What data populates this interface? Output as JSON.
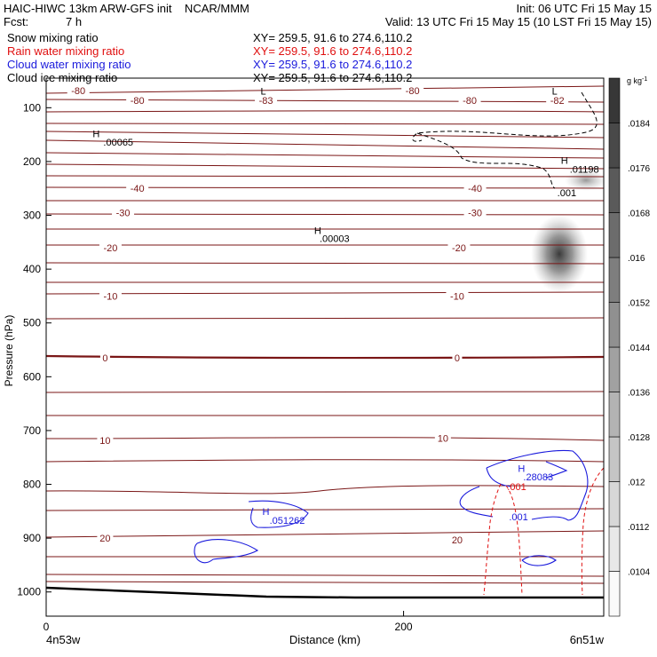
{
  "header": {
    "model_line": "HAIC-HIWC 13km ARW-GFS init    NCAR/MMM",
    "init_line": "Init: 06 UTC Fri 15 May 15",
    "fcst_label": "Fcst:",
    "fcst_value": "7 h",
    "valid_line": "Valid: 13 UTC Fri 15 May 15 (10 LST Fri 15 May 15)"
  },
  "fields": [
    {
      "name": "Snow mixing ratio",
      "xy": "XY= 259.5, 91.6 to 274.6,110.2",
      "color": "#000000"
    },
    {
      "name": "Rain water mixing ratio",
      "xy": "XY= 259.5, 91.6 to 274.6,110.2",
      "color": "#e01010"
    },
    {
      "name": "Cloud water mixing ratio",
      "xy": "XY= 259.5, 91.6 to 274.6,110.2",
      "color": "#1a1adc"
    },
    {
      "name": "Cloud ice mixing ratio",
      "xy": "XY= 259.5, 91.6 to 274.6,110.2",
      "color": "#000000"
    }
  ],
  "chart_data": {
    "type": "cross-section",
    "xlabel": "Distance (km)",
    "ylabel": "Pressure (hPa)",
    "x_ticks": [
      0,
      200
    ],
    "xlim": [
      0,
      312
    ],
    "y_ticks": [
      100,
      200,
      300,
      400,
      500,
      600,
      700,
      800,
      900,
      1000
    ],
    "ylim": [
      45,
      1045
    ],
    "left_endpoint": "4n53w",
    "right_endpoint": "6n51w",
    "colorbar": {
      "unit": "g kg",
      "unit_exp": "-1",
      "labels": [
        ".0104",
        ".0112",
        ".012",
        ".0128",
        ".0136",
        ".0144",
        ".0152",
        ".016",
        ".0168",
        ".0176",
        ".0184"
      ]
    },
    "temperature_labels": [
      {
        "text": "-80",
        "x": 18,
        "p": 68
      },
      {
        "text": "-80",
        "x": 51,
        "p": 86
      },
      {
        "text": "-80",
        "x": 205,
        "p": 68
      },
      {
        "text": "-80",
        "x": 237,
        "p": 86
      },
      {
        "text": "-83",
        "x": 123,
        "p": 86
      },
      {
        "text": "-82",
        "x": 286,
        "p": 86
      },
      {
        "text": "-40",
        "x": 51,
        "p": 250
      },
      {
        "text": "-40",
        "x": 240,
        "p": 250
      },
      {
        "text": "-30",
        "x": 43,
        "p": 295
      },
      {
        "text": "-30",
        "x": 240,
        "p": 295
      },
      {
        "text": "-20",
        "x": 36,
        "p": 360
      },
      {
        "text": "-20",
        "x": 231,
        "p": 360
      },
      {
        "text": "-10",
        "x": 36,
        "p": 450
      },
      {
        "text": "-10",
        "x": 230,
        "p": 450
      },
      {
        "text": "0",
        "x": 33,
        "p": 565
      },
      {
        "text": "0",
        "x": 230,
        "p": 565
      },
      {
        "text": "10",
        "x": 33,
        "p": 718
      },
      {
        "text": "10",
        "x": 222,
        "p": 714
      },
      {
        "text": "20",
        "x": 33,
        "p": 900
      },
      {
        "text": "20",
        "x": 230,
        "p": 903
      }
    ],
    "extrema_labels": [
      {
        "text": "L",
        "x": 120,
        "p": 69,
        "color": "#000000"
      },
      {
        "text": "L",
        "x": 283,
        "p": 69,
        "color": "#000000"
      },
      {
        "text": "H",
        "x": 26,
        "p": 148,
        "color": "#000000"
      },
      {
        "text": ".00065",
        "x": 32,
        "p": 164,
        "color": "#000000"
      },
      {
        "text": "H",
        "x": 288,
        "p": 198,
        "color": "#000000"
      },
      {
        "text": ".01198",
        "x": 293,
        "p": 214,
        "color": "#000000"
      },
      {
        "text": ".001",
        "x": 286,
        "p": 258,
        "color": "#000000"
      },
      {
        "text": "H",
        "x": 150,
        "p": 328,
        "color": "#000000"
      },
      {
        "text": ".00003",
        "x": 153,
        "p": 343,
        "color": "#000000"
      },
      {
        "text": "H",
        "x": 264,
        "p": 770,
        "color": "#1a1adc"
      },
      {
        "text": ".28083",
        "x": 267,
        "p": 786,
        "color": "#1a1adc"
      },
      {
        "text": ".001",
        "x": 258,
        "p": 804,
        "color": "#e01010"
      },
      {
        "text": ".001",
        "x": 259,
        "p": 860,
        "color": "#1a1adc"
      },
      {
        "text": "H",
        "x": 121,
        "p": 850,
        "color": "#1a1adc"
      },
      {
        "text": ".051262",
        "x": 125,
        "p": 867,
        "color": "#1a1adc"
      }
    ]
  }
}
